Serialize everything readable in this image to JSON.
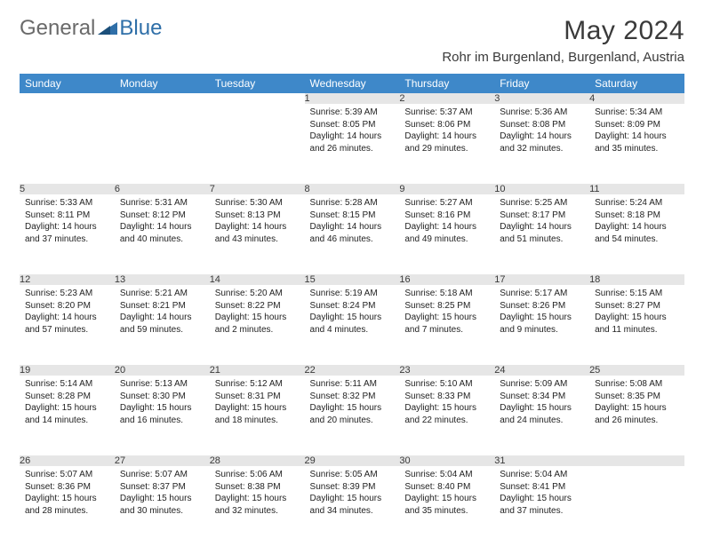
{
  "logo": {
    "text1": "General",
    "text2": "Blue"
  },
  "title": "May 2024",
  "location": "Rohr im Burgenland, Burgenland, Austria",
  "colors": {
    "header_bg": "#3e88c9",
    "header_text": "#ffffff",
    "daynum_bg": "#e6e6e6",
    "border": "#2a4a6a",
    "text": "#222222",
    "logo_gray": "#6a6a6a",
    "logo_blue": "#2f6fa8"
  },
  "weekdays": [
    "Sunday",
    "Monday",
    "Tuesday",
    "Wednesday",
    "Thursday",
    "Friday",
    "Saturday"
  ],
  "weeks": [
    [
      null,
      null,
      null,
      {
        "n": "1",
        "sr": "5:39 AM",
        "ss": "8:05 PM",
        "dl": "14 hours and 26 minutes."
      },
      {
        "n": "2",
        "sr": "5:37 AM",
        "ss": "8:06 PM",
        "dl": "14 hours and 29 minutes."
      },
      {
        "n": "3",
        "sr": "5:36 AM",
        "ss": "8:08 PM",
        "dl": "14 hours and 32 minutes."
      },
      {
        "n": "4",
        "sr": "5:34 AM",
        "ss": "8:09 PM",
        "dl": "14 hours and 35 minutes."
      }
    ],
    [
      {
        "n": "5",
        "sr": "5:33 AM",
        "ss": "8:11 PM",
        "dl": "14 hours and 37 minutes."
      },
      {
        "n": "6",
        "sr": "5:31 AM",
        "ss": "8:12 PM",
        "dl": "14 hours and 40 minutes."
      },
      {
        "n": "7",
        "sr": "5:30 AM",
        "ss": "8:13 PM",
        "dl": "14 hours and 43 minutes."
      },
      {
        "n": "8",
        "sr": "5:28 AM",
        "ss": "8:15 PM",
        "dl": "14 hours and 46 minutes."
      },
      {
        "n": "9",
        "sr": "5:27 AM",
        "ss": "8:16 PM",
        "dl": "14 hours and 49 minutes."
      },
      {
        "n": "10",
        "sr": "5:25 AM",
        "ss": "8:17 PM",
        "dl": "14 hours and 51 minutes."
      },
      {
        "n": "11",
        "sr": "5:24 AM",
        "ss": "8:18 PM",
        "dl": "14 hours and 54 minutes."
      }
    ],
    [
      {
        "n": "12",
        "sr": "5:23 AM",
        "ss": "8:20 PM",
        "dl": "14 hours and 57 minutes."
      },
      {
        "n": "13",
        "sr": "5:21 AM",
        "ss": "8:21 PM",
        "dl": "14 hours and 59 minutes."
      },
      {
        "n": "14",
        "sr": "5:20 AM",
        "ss": "8:22 PM",
        "dl": "15 hours and 2 minutes."
      },
      {
        "n": "15",
        "sr": "5:19 AM",
        "ss": "8:24 PM",
        "dl": "15 hours and 4 minutes."
      },
      {
        "n": "16",
        "sr": "5:18 AM",
        "ss": "8:25 PM",
        "dl": "15 hours and 7 minutes."
      },
      {
        "n": "17",
        "sr": "5:17 AM",
        "ss": "8:26 PM",
        "dl": "15 hours and 9 minutes."
      },
      {
        "n": "18",
        "sr": "5:15 AM",
        "ss": "8:27 PM",
        "dl": "15 hours and 11 minutes."
      }
    ],
    [
      {
        "n": "19",
        "sr": "5:14 AM",
        "ss": "8:28 PM",
        "dl": "15 hours and 14 minutes."
      },
      {
        "n": "20",
        "sr": "5:13 AM",
        "ss": "8:30 PM",
        "dl": "15 hours and 16 minutes."
      },
      {
        "n": "21",
        "sr": "5:12 AM",
        "ss": "8:31 PM",
        "dl": "15 hours and 18 minutes."
      },
      {
        "n": "22",
        "sr": "5:11 AM",
        "ss": "8:32 PM",
        "dl": "15 hours and 20 minutes."
      },
      {
        "n": "23",
        "sr": "5:10 AM",
        "ss": "8:33 PM",
        "dl": "15 hours and 22 minutes."
      },
      {
        "n": "24",
        "sr": "5:09 AM",
        "ss": "8:34 PM",
        "dl": "15 hours and 24 minutes."
      },
      {
        "n": "25",
        "sr": "5:08 AM",
        "ss": "8:35 PM",
        "dl": "15 hours and 26 minutes."
      }
    ],
    [
      {
        "n": "26",
        "sr": "5:07 AM",
        "ss": "8:36 PM",
        "dl": "15 hours and 28 minutes."
      },
      {
        "n": "27",
        "sr": "5:07 AM",
        "ss": "8:37 PM",
        "dl": "15 hours and 30 minutes."
      },
      {
        "n": "28",
        "sr": "5:06 AM",
        "ss": "8:38 PM",
        "dl": "15 hours and 32 minutes."
      },
      {
        "n": "29",
        "sr": "5:05 AM",
        "ss": "8:39 PM",
        "dl": "15 hours and 34 minutes."
      },
      {
        "n": "30",
        "sr": "5:04 AM",
        "ss": "8:40 PM",
        "dl": "15 hours and 35 minutes."
      },
      {
        "n": "31",
        "sr": "5:04 AM",
        "ss": "8:41 PM",
        "dl": "15 hours and 37 minutes."
      },
      null
    ]
  ],
  "labels": {
    "sunrise": "Sunrise:",
    "sunset": "Sunset:",
    "daylight": "Daylight:"
  }
}
